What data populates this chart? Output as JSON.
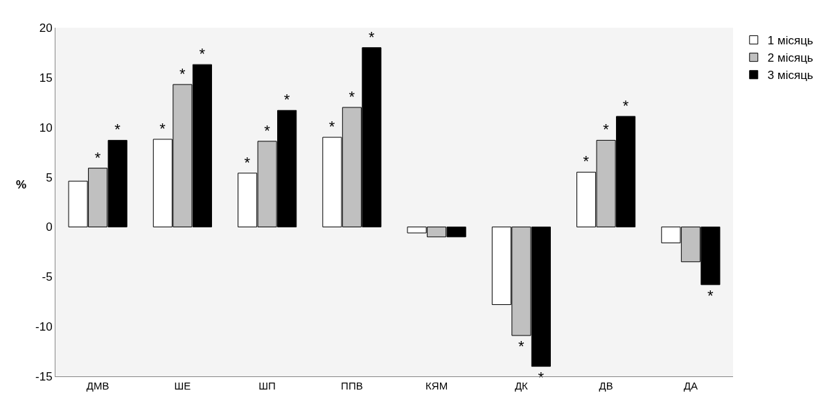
{
  "chart_data": {
    "type": "bar",
    "ylabel": "%",
    "categories": [
      "ДМВ",
      "ШЕ",
      "ШП",
      "ППВ",
      "КЯМ",
      "ДК",
      "ДВ",
      "ДА"
    ],
    "series": [
      {
        "name": "1 місяць",
        "color": "#ffffff",
        "values": [
          4.6,
          8.8,
          5.4,
          9.0,
          -0.6,
          -7.8,
          5.5,
          -1.6
        ],
        "value_labels": [
          null,
          "*",
          "*",
          "*",
          null,
          null,
          "*",
          null
        ]
      },
      {
        "name": "2 місяць",
        "color": "#c0c0c0",
        "values": [
          5.9,
          14.3,
          8.6,
          12.0,
          -1.0,
          -10.9,
          8.7,
          -3.5
        ],
        "value_labels": [
          "*",
          "*",
          "*",
          "*",
          null,
          "*",
          "*",
          null
        ]
      },
      {
        "name": "3 місяць",
        "color": "#000000",
        "values": [
          8.7,
          16.3,
          11.7,
          18.0,
          -1.0,
          -14.0,
          11.1,
          -5.8
        ],
        "value_labels": [
          "*",
          "*",
          "*",
          "*",
          null,
          "*",
          "*",
          "*"
        ]
      }
    ],
    "ylim": [
      -15,
      20
    ],
    "yticks": [
      -15,
      -10,
      -5,
      0,
      5,
      10,
      15,
      20
    ],
    "grid": false,
    "legend": "top right"
  }
}
